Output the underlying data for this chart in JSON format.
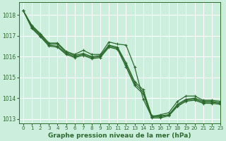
{
  "bg_color": "#cceedd",
  "grid_color": "#ffffff",
  "line_color": "#2d6a2d",
  "xlabel": "Graphe pression niveau de la mer (hPa)",
  "xlim": [
    -0.5,
    23
  ],
  "ylim": [
    1012.8,
    1018.6
  ],
  "yticks": [
    1013,
    1014,
    1015,
    1016,
    1017,
    1018
  ],
  "xticks": [
    0,
    1,
    2,
    3,
    4,
    5,
    6,
    7,
    8,
    9,
    10,
    11,
    12,
    13,
    14,
    15,
    16,
    17,
    18,
    19,
    20,
    21,
    22,
    23
  ],
  "series": [
    {
      "x": [
        0,
        1,
        2,
        3,
        4,
        5,
        6,
        7,
        8,
        9,
        10,
        11,
        12,
        13,
        14,
        15,
        16,
        17,
        18,
        19,
        20,
        21,
        22,
        23
      ],
      "y": [
        1018.2,
        1017.5,
        1017.1,
        1016.65,
        1016.65,
        1016.25,
        1016.1,
        1016.3,
        1016.1,
        1016.1,
        1016.7,
        1016.6,
        1016.55,
        1015.5,
        1013.95,
        1013.1,
        1013.2,
        1013.3,
        1013.85,
        1014.1,
        1014.1,
        1013.9,
        1013.9,
        1013.85
      ],
      "lw": 0.9
    },
    {
      "x": [
        0,
        1,
        2,
        3,
        4,
        5,
        6,
        7,
        8,
        9,
        10,
        11,
        12,
        13,
        14,
        15,
        16,
        17,
        18,
        19,
        20,
        21,
        22,
        23
      ],
      "y": [
        1018.2,
        1017.45,
        1017.05,
        1016.6,
        1016.6,
        1016.2,
        1016.05,
        1016.15,
        1016.0,
        1016.05,
        1016.55,
        1016.45,
        1015.7,
        1014.8,
        1014.4,
        1013.15,
        1013.15,
        1013.2,
        1013.7,
        1013.95,
        1014.0,
        1013.85,
        1013.85,
        1013.78
      ],
      "lw": 0.9
    },
    {
      "x": [
        0,
        1,
        2,
        3,
        4,
        5,
        6,
        7,
        8,
        9,
        10,
        11,
        12,
        13,
        14,
        15,
        16,
        17,
        18,
        19,
        20,
        21,
        22,
        23
      ],
      "y": [
        1018.2,
        1017.4,
        1017.0,
        1016.55,
        1016.5,
        1016.15,
        1016.0,
        1016.1,
        1015.95,
        1016.0,
        1016.5,
        1016.4,
        1015.6,
        1014.7,
        1014.3,
        1013.1,
        1013.1,
        1013.2,
        1013.65,
        1013.9,
        1013.95,
        1013.8,
        1013.8,
        1013.75
      ],
      "lw": 0.9
    },
    {
      "x": [
        0,
        1,
        2,
        3,
        4,
        5,
        6,
        7,
        8,
        9,
        10,
        11,
        12,
        13,
        14,
        15,
        16,
        17,
        18,
        19,
        20,
        21,
        22,
        23
      ],
      "y": [
        1018.2,
        1017.35,
        1016.95,
        1016.5,
        1016.45,
        1016.1,
        1015.95,
        1016.05,
        1015.9,
        1015.95,
        1016.45,
        1016.35,
        1015.5,
        1014.6,
        1014.2,
        1013.05,
        1013.05,
        1013.15,
        1013.6,
        1013.85,
        1013.9,
        1013.75,
        1013.75,
        1013.7
      ],
      "lw": 0.9
    }
  ],
  "xlabel_fontsize": 6.5,
  "xlabel_fontweight": "bold",
  "tick_fontsize": 5.2
}
